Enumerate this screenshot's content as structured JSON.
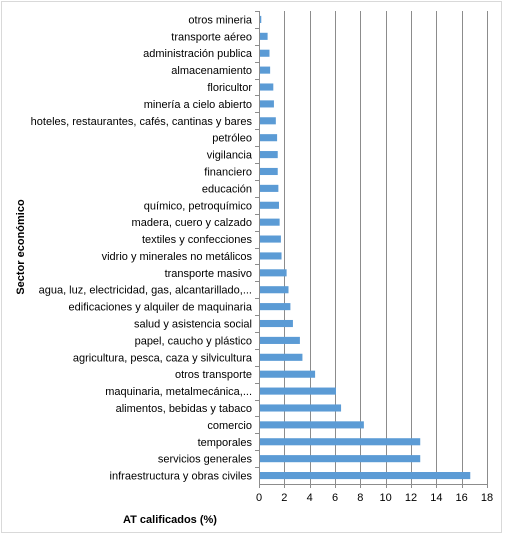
{
  "chart_data": {
    "type": "bar",
    "orientation": "horizontal",
    "xlabel": "AT calificados (%)",
    "ylabel": "Sector económico",
    "xlim": [
      0,
      18
    ],
    "x_ticks": [
      0,
      2,
      4,
      6,
      8,
      10,
      12,
      14,
      16,
      18
    ],
    "grid": "vertical",
    "bar_color": "#5b9bd5",
    "categories": [
      "otros mineria",
      "transporte aéreo",
      "administración publica",
      "almacenamiento",
      "floricultor",
      "minería a cielo abierto",
      "hoteles, restaurantes, cafés, cantinas y bares",
      "petróleo",
      "vigilancia",
      "financiero",
      "educación",
      "químico, petroquímico",
      "madera, cuero y calzado",
      "textiles y confecciones",
      "vidrio y minerales no metálicos",
      "transporte masivo",
      "agua, luz, electricidad, gas, alcantarillado,...",
      "edificaciones y alquiler de maquinaria",
      "salud y asistencia social",
      "papel, caucho y plástico",
      "agricultura, pesca, caza y silvicultura",
      "otros transporte",
      "maquinaria, metalmecánica,...",
      "alimentos, bebidas y tabaco",
      "comercio",
      "temporales",
      "servicios generales",
      "infraestructura y obras civiles"
    ],
    "values": [
      0.1,
      0.6,
      0.75,
      0.8,
      1.05,
      1.1,
      1.25,
      1.35,
      1.4,
      1.4,
      1.45,
      1.5,
      1.55,
      1.65,
      1.7,
      2.1,
      2.25,
      2.4,
      2.6,
      3.15,
      3.35,
      4.35,
      6.0,
      6.4,
      8.2,
      12.65,
      12.65,
      16.6
    ]
  }
}
